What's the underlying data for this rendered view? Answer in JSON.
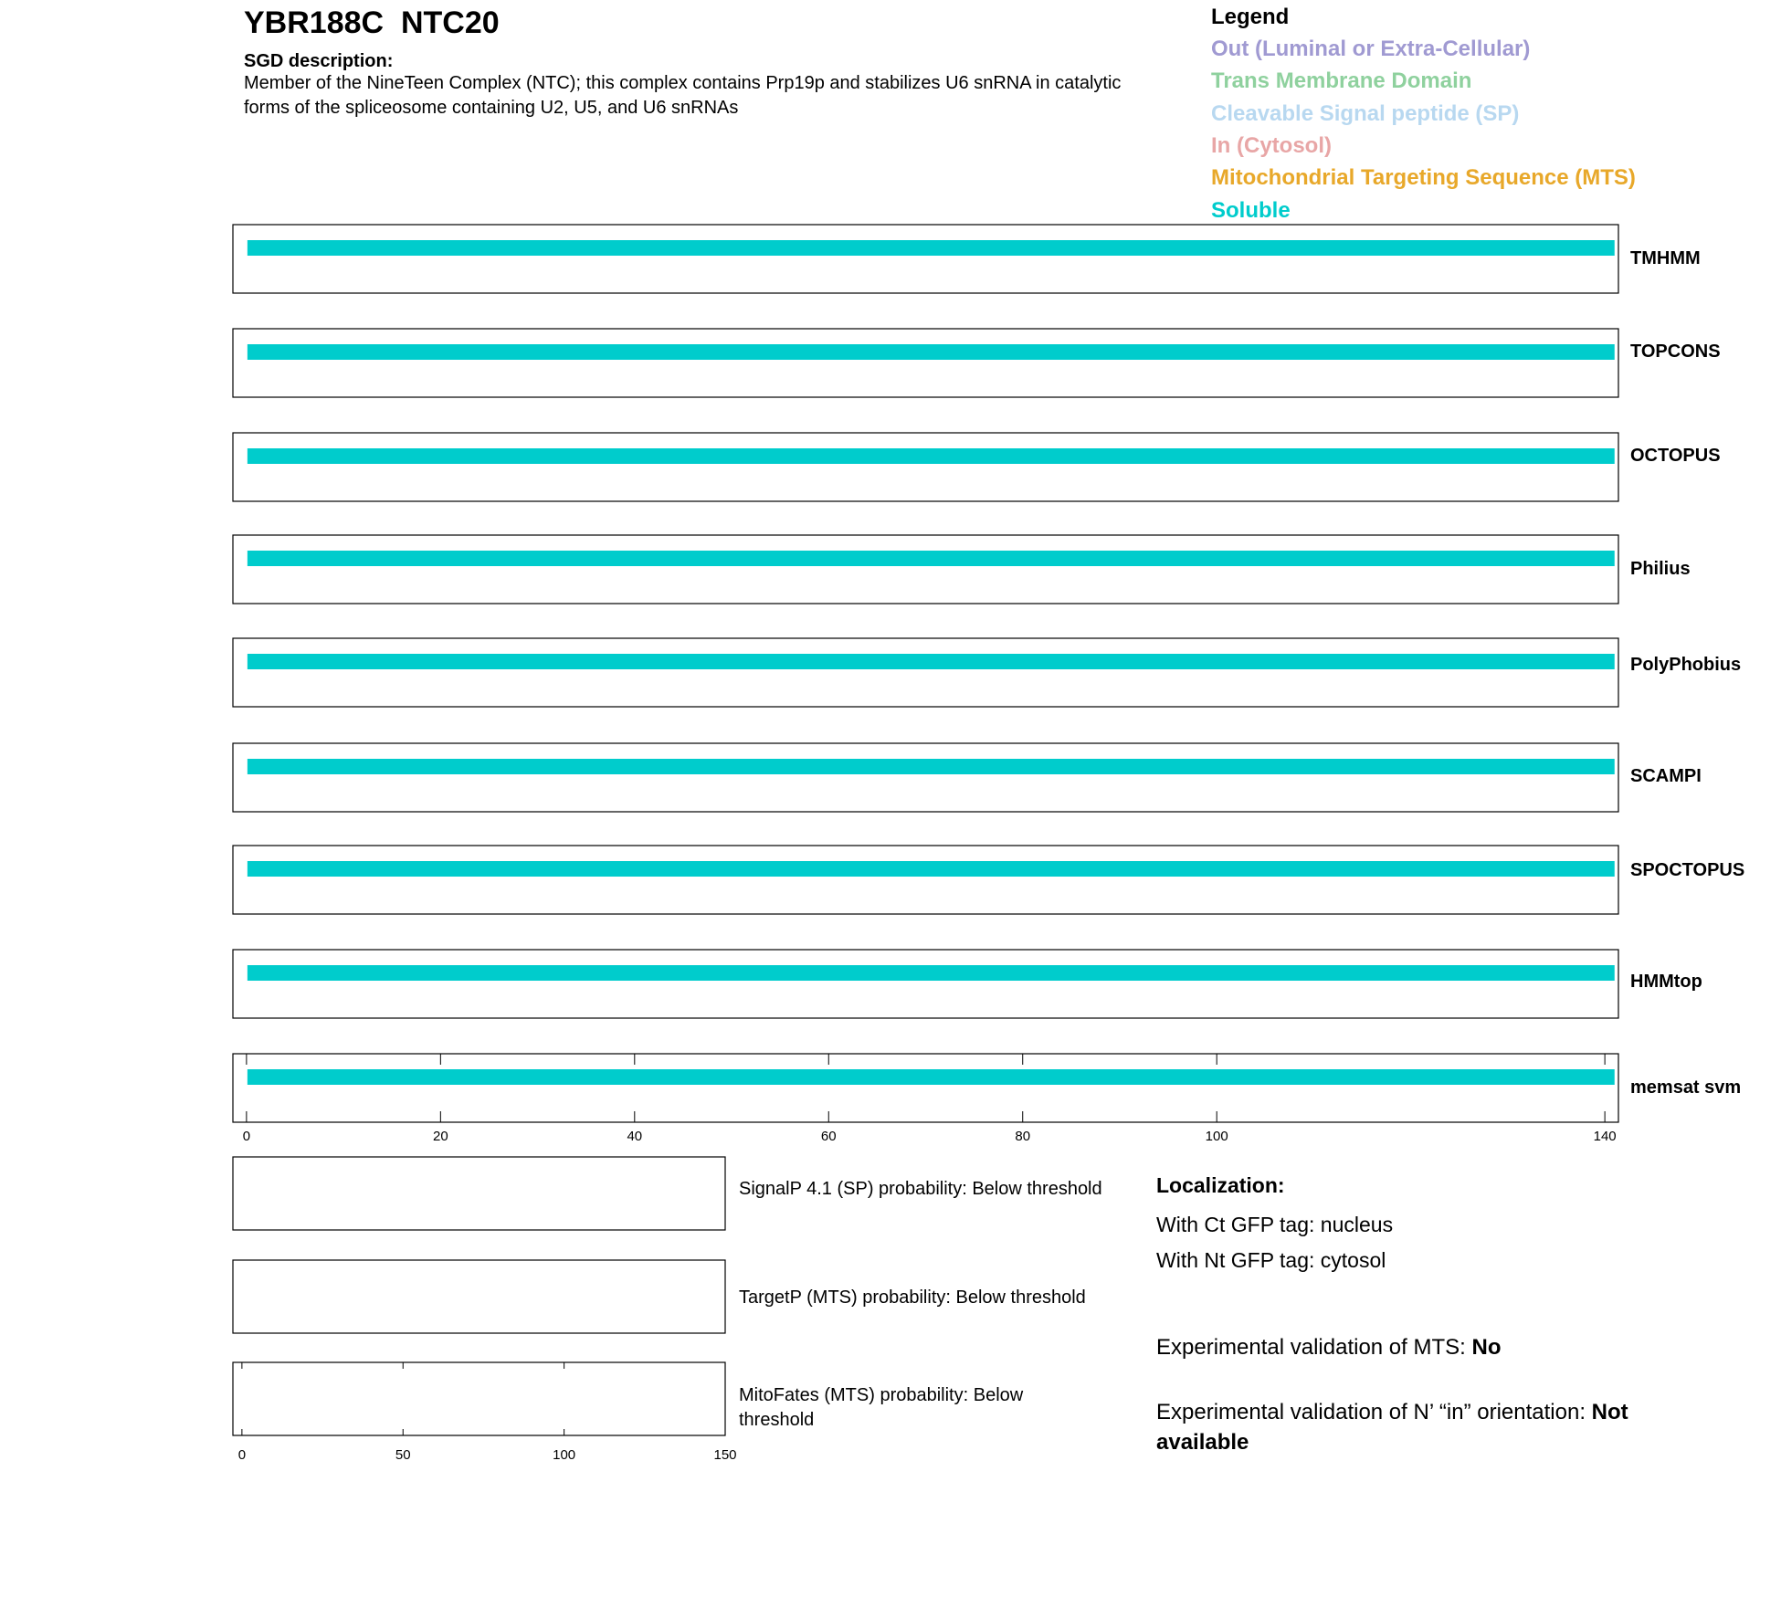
{
  "header": {
    "title": "YBR188C  NTC20",
    "description_label": "SGD description:",
    "description": "Member of the NineTeen Complex (NTC); this complex contains Prp19p and stabilizes U6 snRNA in catalytic forms of the spliceosome containing U2, U5, and U6 snRNAs"
  },
  "legend_title": "Legend",
  "chart_data": [
    {
      "type": "bar",
      "orientation": "horizontal",
      "categories": [
        "TMHMM",
        "TOPCONS",
        "OCTOPUS",
        "Philius",
        "PolyPhobius",
        "SCAMPI",
        "SPOCTOPUS",
        "HMMtop",
        "memsat svm"
      ],
      "series": [
        {
          "name": "Out (Luminal or Extra-Cellular)",
          "color": "#a09ad2",
          "values": [
            null,
            null,
            null,
            null,
            null,
            null,
            null,
            null,
            null
          ]
        },
        {
          "name": "Trans Membrane Domain",
          "color": "#8fd19e",
          "values": [
            null,
            null,
            null,
            null,
            null,
            null,
            null,
            null,
            null
          ]
        },
        {
          "name": "Cleavable Signal peptide (SP)",
          "color": "#b8d8f0",
          "values": [
            null,
            null,
            null,
            null,
            null,
            null,
            null,
            null,
            null
          ]
        },
        {
          "name": "In (Cytosol)",
          "color": "#e8a6a6",
          "values": [
            null,
            null,
            null,
            null,
            null,
            null,
            null,
            null,
            null
          ]
        },
        {
          "name": "Mitochondrial Targeting Sequence (MTS)",
          "color": "#e8a82a",
          "values": [
            null,
            null,
            null,
            null,
            null,
            null,
            null,
            null,
            null
          ]
        },
        {
          "name": "Soluble",
          "color": "#00cccc",
          "values": [
            141,
            141,
            141,
            141,
            141,
            141,
            141,
            141,
            141
          ]
        }
      ],
      "xlim": [
        -1.4,
        141.4
      ],
      "xticks": [
        0,
        20,
        40,
        60,
        80,
        100,
        140
      ]
    },
    {
      "type": "bar",
      "orientation": "horizontal",
      "categories": [
        "SignalP 4.1 (SP) probability: Below threshold",
        "TargetP (MTS) probability: Below threshold",
        "MitoFates (MTS) probability: Below threshold"
      ],
      "xlim": [
        -2.8,
        150
      ],
      "xticks": [
        0,
        50,
        100,
        150
      ]
    }
  ],
  "localization": {
    "title": "Localization:",
    "lines": [
      "With Ct GFP tag: nucleus",
      "With Nt GFP tag: cytosol"
    ],
    "validations": [
      {
        "text": "Experimental validation of MTS: ",
        "value": "No"
      },
      {
        "text": "Experimental validation of N’ “in” orientation: ",
        "value": "Not available"
      }
    ]
  }
}
